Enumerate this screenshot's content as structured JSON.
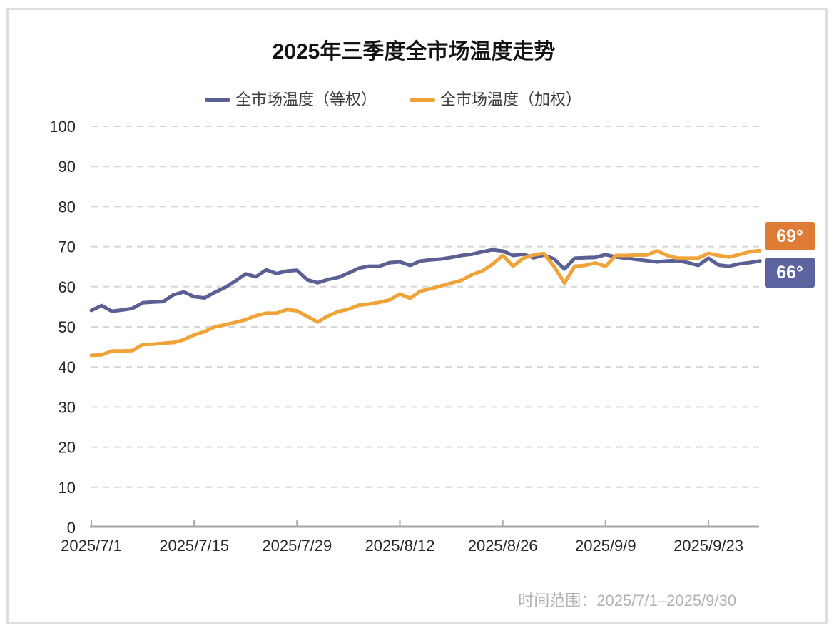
{
  "title": "2025年三季度全市场温度走势",
  "legend": {
    "items": [
      {
        "label": "全市场温度（等权）",
        "color": "#5A5F94"
      },
      {
        "label": "全市场温度（加权）",
        "color": "#F0A338"
      }
    ]
  },
  "badges": [
    {
      "text": "69°",
      "bg": "#DE7B34"
    },
    {
      "text": "66°",
      "bg": "#5D639E"
    }
  ],
  "footer": {
    "text": "时间范围：2025/7/1–2025/9/30"
  },
  "colors": {
    "equal_weight_line": "#5A5F94",
    "weighted_line": "#F0A338",
    "gridline": "#d6d6d6",
    "axis": "#a6a6a6",
    "tick_label": "#262626"
  },
  "chart_data": {
    "type": "line",
    "title": "2025年三季度全市场温度走势",
    "xlabel": "",
    "ylabel": "",
    "ylim": [
      0,
      100
    ],
    "y_ticks": [
      0,
      10,
      20,
      30,
      40,
      50,
      60,
      70,
      80,
      90,
      100
    ],
    "x_tick_labels": [
      "2025/7/1",
      "2025/7/15",
      "2025/7/29",
      "2025/8/12",
      "2025/8/26",
      "2025/9/9",
      "2025/9/23"
    ],
    "x_range_label": "2025/7/1–2025/9/30",
    "grid": "horizontal-dashed",
    "legend_position": "top-center",
    "x": [
      "7/1",
      "7/2",
      "7/3",
      "7/4",
      "7/7",
      "7/8",
      "7/9",
      "7/10",
      "7/11",
      "7/14",
      "7/15",
      "7/16",
      "7/17",
      "7/18",
      "7/21",
      "7/22",
      "7/23",
      "7/24",
      "7/25",
      "7/28",
      "7/29",
      "7/30",
      "7/31",
      "8/1",
      "8/4",
      "8/5",
      "8/6",
      "8/7",
      "8/8",
      "8/11",
      "8/12",
      "8/13",
      "8/14",
      "8/15",
      "8/18",
      "8/19",
      "8/20",
      "8/21",
      "8/22",
      "8/25",
      "8/26",
      "8/27",
      "8/28",
      "8/29",
      "9/1",
      "9/2",
      "9/3",
      "9/4",
      "9/5",
      "9/8",
      "9/9",
      "9/10",
      "9/11",
      "9/12",
      "9/15",
      "9/16",
      "9/17",
      "9/18",
      "9/19",
      "9/22",
      "9/23",
      "9/24",
      "9/25",
      "9/26",
      "9/29",
      "9/30"
    ],
    "series": [
      {
        "name": "全市场温度（等权）",
        "color": "#5A5F94",
        "end_label": "66°",
        "values": [
          54.1,
          55.3,
          53.9,
          54.2,
          54.6,
          56.0,
          56.2,
          56.3,
          58.0,
          58.7,
          57.5,
          57.2,
          58.6,
          59.8,
          61.4,
          63.2,
          62.5,
          64.2,
          63.3,
          63.9,
          64.1,
          61.7,
          61.0,
          61.8,
          62.3,
          63.4,
          64.6,
          65.1,
          65.1,
          66.0,
          66.2,
          65.3,
          66.4,
          66.7,
          66.9,
          67.3,
          67.8,
          68.1,
          68.7,
          69.2,
          68.9,
          67.8,
          68.1,
          67.2,
          67.9,
          66.9,
          64.4,
          67.1,
          67.2,
          67.3,
          68.0,
          67.4,
          67.1,
          66.8,
          66.5,
          66.2,
          66.4,
          66.5,
          66.0,
          65.3,
          67.1,
          65.4,
          65.1,
          65.7,
          66.0,
          66.4
        ]
      },
      {
        "name": "全市场温度（加权）",
        "color": "#F0A338",
        "end_label": "69°",
        "values": [
          42.9,
          43.0,
          44.0,
          44.0,
          44.1,
          45.6,
          45.7,
          45.9,
          46.1,
          46.8,
          48.0,
          48.8,
          50.0,
          50.5,
          51.1,
          51.8,
          52.8,
          53.4,
          53.4,
          54.3,
          54.0,
          52.6,
          51.2,
          52.7,
          53.8,
          54.4,
          55.4,
          55.7,
          56.1,
          56.7,
          58.2,
          57.1,
          58.9,
          59.5,
          60.2,
          60.9,
          61.6,
          63.0,
          63.9,
          65.6,
          67.8,
          65.1,
          67.1,
          67.9,
          68.3,
          65.0,
          60.9,
          65.1,
          65.3,
          65.9,
          65.1,
          67.8,
          67.8,
          67.9,
          67.9,
          68.9,
          67.8,
          67.1,
          67.1,
          67.1,
          68.3,
          67.8,
          67.4,
          68.0,
          68.7,
          69.0
        ]
      }
    ]
  }
}
